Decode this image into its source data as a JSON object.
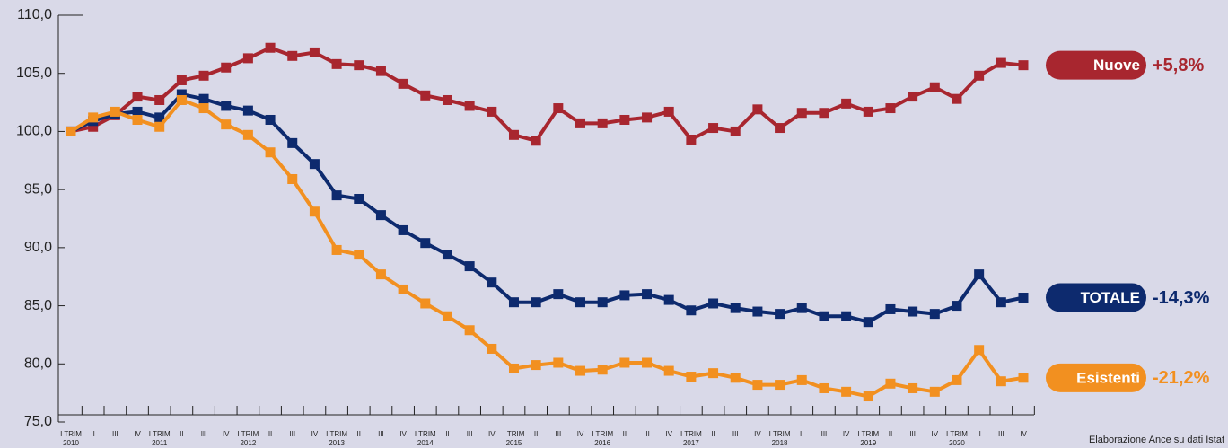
{
  "chart_data": {
    "type": "line",
    "categories": [
      "I TRIM",
      "II",
      "III",
      "IV",
      "I TRIM",
      "II",
      "III",
      "IV",
      "I TRIM",
      "II",
      "III",
      "IV",
      "I TRIM",
      "II",
      "III",
      "IV",
      "I TRIM",
      "II",
      "III",
      "IV",
      "I TRIM",
      "II",
      "III",
      "IV",
      "I TRIM",
      "II",
      "III",
      "IV",
      "I TRIM",
      "II",
      "III",
      "IV",
      "I TRIM",
      "II",
      "III",
      "IV",
      "I TRIM",
      "II",
      "III",
      "IV",
      "I TRIM",
      "II",
      "III",
      "IV"
    ],
    "year_labels": [
      "2010",
      "2011",
      "2012",
      "2013",
      "2014",
      "2015",
      "2016",
      "2017",
      "2018",
      "2019",
      "2020"
    ],
    "series": [
      {
        "name": "Nuove",
        "color": "#a8262f",
        "change": "+5,8%",
        "values": [
          100.0,
          100.4,
          101.4,
          103.0,
          102.7,
          104.4,
          104.8,
          105.5,
          106.3,
          107.2,
          106.5,
          106.8,
          105.8,
          105.7,
          105.2,
          104.1,
          103.1,
          102.7,
          102.2,
          101.7,
          99.7,
          99.2,
          102.0,
          100.7,
          100.7,
          101.0,
          101.2,
          101.7,
          99.3,
          100.3,
          100.0,
          101.9,
          100.3,
          101.6,
          101.6,
          102.4,
          101.7,
          102.0,
          103.0,
          103.8,
          102.8,
          104.8,
          105.9,
          105.7
        ]
      },
      {
        "name": "TOTALE",
        "color": "#0d2a6e",
        "change": "-14,3%",
        "values": [
          100.0,
          100.9,
          101.5,
          101.7,
          101.2,
          103.2,
          102.8,
          102.2,
          101.8,
          101.0,
          99.0,
          97.2,
          94.5,
          94.2,
          92.8,
          91.5,
          90.4,
          89.4,
          88.4,
          87.0,
          85.3,
          85.3,
          86.0,
          85.3,
          85.3,
          85.9,
          86.0,
          85.5,
          84.6,
          85.2,
          84.8,
          84.5,
          84.3,
          84.8,
          84.1,
          84.1,
          83.6,
          84.7,
          84.5,
          84.3,
          85.0,
          87.7,
          85.3,
          85.7
        ]
      },
      {
        "name": "Esistenti",
        "color": "#f29020",
        "change": "-21,2%",
        "values": [
          100.0,
          101.2,
          101.7,
          101.0,
          100.4,
          102.7,
          102.0,
          100.6,
          99.7,
          98.2,
          95.9,
          93.1,
          89.8,
          89.4,
          87.7,
          86.4,
          85.2,
          84.1,
          82.9,
          81.3,
          79.6,
          79.9,
          80.1,
          79.4,
          79.5,
          80.1,
          80.1,
          79.4,
          78.9,
          79.2,
          78.8,
          78.2,
          78.2,
          78.6,
          77.9,
          77.6,
          77.2,
          78.3,
          77.9,
          77.6,
          78.6,
          81.2,
          78.5,
          78.8
        ]
      }
    ],
    "ylim": [
      75,
      110
    ],
    "yticks": [
      {
        "value": 75,
        "label": "75,0"
      },
      {
        "value": 80,
        "label": "80,0"
      },
      {
        "value": 85,
        "label": "85,0"
      },
      {
        "value": 90,
        "label": "90,0"
      },
      {
        "value": 95,
        "label": "95,0"
      },
      {
        "value": 100,
        "label": "100,0"
      },
      {
        "value": 105,
        "label": "105,0"
      },
      {
        "value": 110,
        "label": "110,0"
      }
    ],
    "source": "Elaborazione Ance su dati Istat"
  }
}
